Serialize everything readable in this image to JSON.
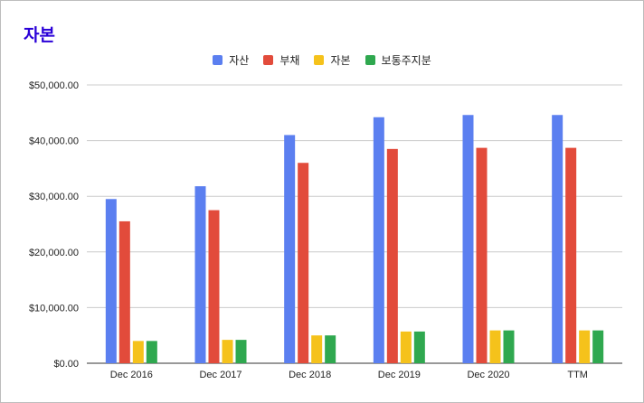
{
  "chart_data": {
    "type": "bar",
    "title": "자본",
    "categories": [
      "Dec 2016",
      "Dec 2017",
      "Dec 2018",
      "Dec 2019",
      "Dec 2020",
      "TTM"
    ],
    "series": [
      {
        "name": "자산",
        "color": "#5b7ff0",
        "values": [
          29500,
          31800,
          41000,
          44200,
          44600,
          44600
        ]
      },
      {
        "name": "부채",
        "color": "#e24b3b",
        "values": [
          25500,
          27500,
          36000,
          38500,
          38700,
          38700
        ]
      },
      {
        "name": "자본",
        "color": "#f5c21b",
        "values": [
          4000,
          4200,
          5000,
          5700,
          5900,
          5900
        ]
      },
      {
        "name": "보통주지분",
        "color": "#2fa84f",
        "values": [
          4000,
          4200,
          5000,
          5700,
          5900,
          5900
        ]
      }
    ],
    "y_ticks": [
      "$0.00",
      "$10,000.00",
      "$20,000.00",
      "$30,000.00",
      "$40,000.00",
      "$50,000.00"
    ],
    "ylim": [
      0,
      50000
    ],
    "grid": true,
    "legend_position": "top-center"
  }
}
